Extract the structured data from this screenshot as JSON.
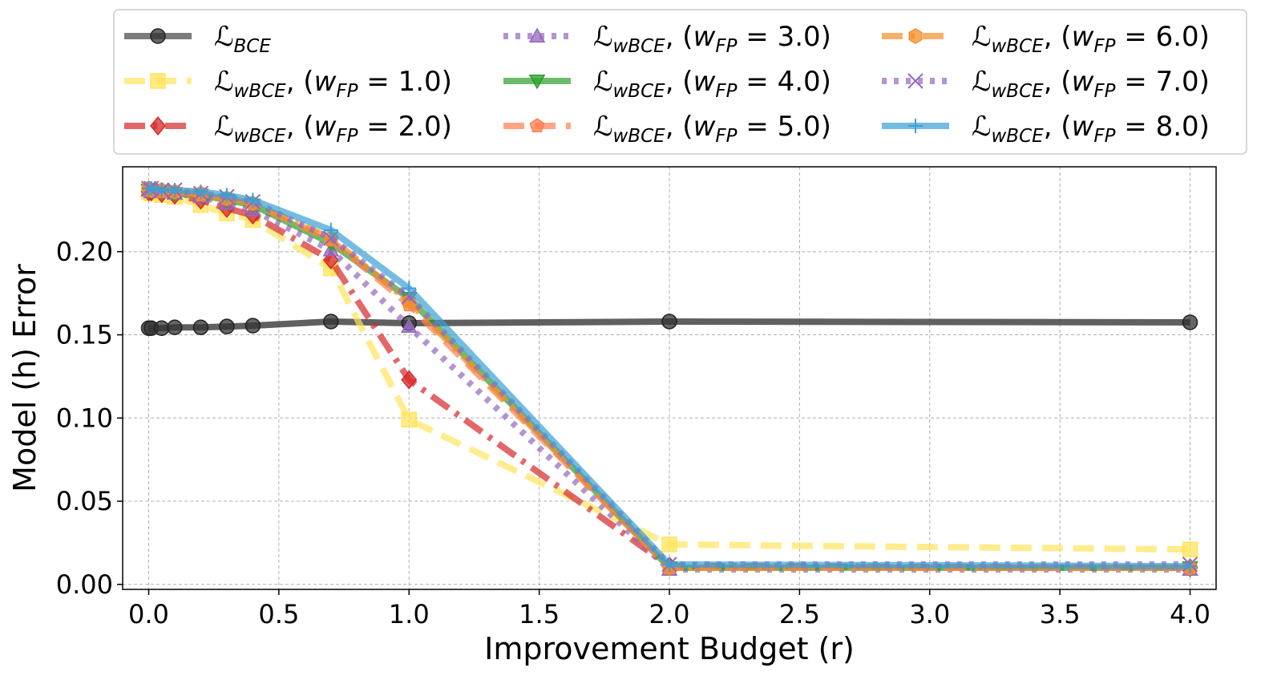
{
  "chart_data": {
    "type": "line",
    "xlabel": "Improvement Budget (r)",
    "ylabel": "Model (h) Error",
    "xlim": [
      -0.1,
      4.1
    ],
    "ylim": [
      -0.003,
      0.251
    ],
    "xticks": [
      0.0,
      0.5,
      1.0,
      1.5,
      2.0,
      2.5,
      3.0,
      3.5,
      4.0
    ],
    "xtick_labels": [
      "0.0",
      "0.5",
      "1.0",
      "1.5",
      "2.0",
      "2.5",
      "3.0",
      "3.5",
      "4.0"
    ],
    "yticks": [
      0.0,
      0.05,
      0.1,
      0.15,
      0.2
    ],
    "ytick_labels": [
      "0.00",
      "0.05",
      "0.10",
      "0.15",
      "0.20"
    ],
    "grid": true,
    "legend_position": "top",
    "legend_columns": 3,
    "series": [
      {
        "name": "ℒBCE",
        "label_main": "ℒ",
        "label_sub": "BCE",
        "label_rest": "",
        "color": "#444444",
        "dash": "solid",
        "marker": "circle",
        "x": [
          0.0,
          0.01,
          0.05,
          0.1,
          0.2,
          0.3,
          0.4,
          0.7,
          1.0,
          2.0,
          4.0
        ],
        "y": [
          0.154,
          0.154,
          0.154,
          0.1545,
          0.1545,
          0.155,
          0.1555,
          0.158,
          0.157,
          0.158,
          0.1575
        ]
      },
      {
        "name": "ℒwBCE, (wFP = 1.0)",
        "label_main": "ℒ",
        "label_sub": "wBCE",
        "label_rest": "1.0",
        "color": "#ffe45c",
        "dash": "dashed",
        "marker": "square",
        "x": [
          0.0,
          0.01,
          0.05,
          0.1,
          0.2,
          0.3,
          0.4,
          0.7,
          1.0,
          2.0,
          4.0
        ],
        "y": [
          0.236,
          0.235,
          0.234,
          0.233,
          0.228,
          0.223,
          0.219,
          0.19,
          0.099,
          0.024,
          0.021
        ]
      },
      {
        "name": "ℒwBCE, (wFP = 2.0)",
        "label_main": "ℒ",
        "label_sub": "wBCE",
        "label_rest": "2.0",
        "color": "#d62728",
        "dash": "dashdot",
        "marker": "diamond",
        "x": [
          0.0,
          0.01,
          0.05,
          0.1,
          0.2,
          0.3,
          0.4,
          0.7,
          1.0,
          2.0,
          4.0
        ],
        "y": [
          0.236,
          0.236,
          0.235,
          0.234,
          0.231,
          0.226,
          0.222,
          0.195,
          0.123,
          0.011,
          0.01
        ]
      },
      {
        "name": "ℒwBCE, (wFP = 3.0)",
        "label_main": "ℒ",
        "label_sub": "wBCE",
        "label_rest": "3.0",
        "color": "#9467bd",
        "dash": "dotted",
        "marker": "triangle-up",
        "x": [
          0.0,
          0.01,
          0.05,
          0.1,
          0.2,
          0.3,
          0.4,
          0.7,
          1.0,
          2.0,
          4.0
        ],
        "y": [
          0.237,
          0.236,
          0.236,
          0.235,
          0.233,
          0.229,
          0.225,
          0.201,
          0.155,
          0.009,
          0.009
        ]
      },
      {
        "name": "ℒwBCE, (wFP = 4.0)",
        "label_main": "ℒ",
        "label_sub": "wBCE",
        "label_rest": "4.0",
        "color": "#2ca02c",
        "dash": "solid",
        "marker": "triangle-down",
        "x": [
          0.0,
          0.01,
          0.05,
          0.1,
          0.2,
          0.3,
          0.4,
          0.7,
          1.0,
          2.0,
          4.0
        ],
        "y": [
          0.237,
          0.237,
          0.236,
          0.235,
          0.234,
          0.231,
          0.228,
          0.205,
          0.172,
          0.01,
          0.01
        ]
      },
      {
        "name": "ℒwBCE, (wFP = 5.0)",
        "label_main": "ℒ",
        "label_sub": "wBCE",
        "label_rest": "5.0",
        "color": "#ff7f50",
        "dash": "dashed",
        "marker": "pentagon",
        "x": [
          0.0,
          0.01,
          0.05,
          0.1,
          0.2,
          0.3,
          0.4,
          0.7,
          1.0,
          2.0,
          4.0
        ],
        "y": [
          0.237,
          0.237,
          0.236,
          0.236,
          0.234,
          0.232,
          0.229,
          0.207,
          0.168,
          0.01,
          0.01
        ]
      },
      {
        "name": "ℒwBCE, (wFP = 6.0)",
        "label_main": "ℒ",
        "label_sub": "wBCE",
        "label_rest": "6.0",
        "color": "#f28e2b",
        "dash": "dashdot",
        "marker": "hexagon",
        "x": [
          0.0,
          0.01,
          0.05,
          0.1,
          0.2,
          0.3,
          0.4,
          0.7,
          1.0,
          2.0,
          4.0
        ],
        "y": [
          0.238,
          0.237,
          0.237,
          0.236,
          0.235,
          0.232,
          0.229,
          0.208,
          0.17,
          0.01,
          0.01
        ]
      },
      {
        "name": "ℒwBCE, (wFP = 7.0)",
        "label_main": "ℒ",
        "label_sub": "wBCE",
        "label_rest": "7.0",
        "color": "#9467bd",
        "dash": "dotted",
        "marker": "x",
        "x": [
          0.0,
          0.01,
          0.05,
          0.1,
          0.2,
          0.3,
          0.4,
          0.7,
          1.0,
          2.0,
          4.0
        ],
        "y": [
          0.238,
          0.238,
          0.237,
          0.237,
          0.235,
          0.233,
          0.23,
          0.208,
          0.173,
          0.012,
          0.012
        ]
      },
      {
        "name": "ℒwBCE, (wFP = 8.0)",
        "label_main": "ℒ",
        "label_sub": "wBCE",
        "label_rest": "8.0",
        "color": "#3a9fd6",
        "dash": "solid",
        "marker": "plus",
        "x": [
          0.0,
          0.01,
          0.05,
          0.1,
          0.2,
          0.3,
          0.4,
          0.7,
          1.0,
          2.0,
          4.0
        ],
        "y": [
          0.238,
          0.238,
          0.237,
          0.237,
          0.236,
          0.234,
          0.231,
          0.213,
          0.178,
          0.012,
          0.011
        ]
      }
    ]
  }
}
